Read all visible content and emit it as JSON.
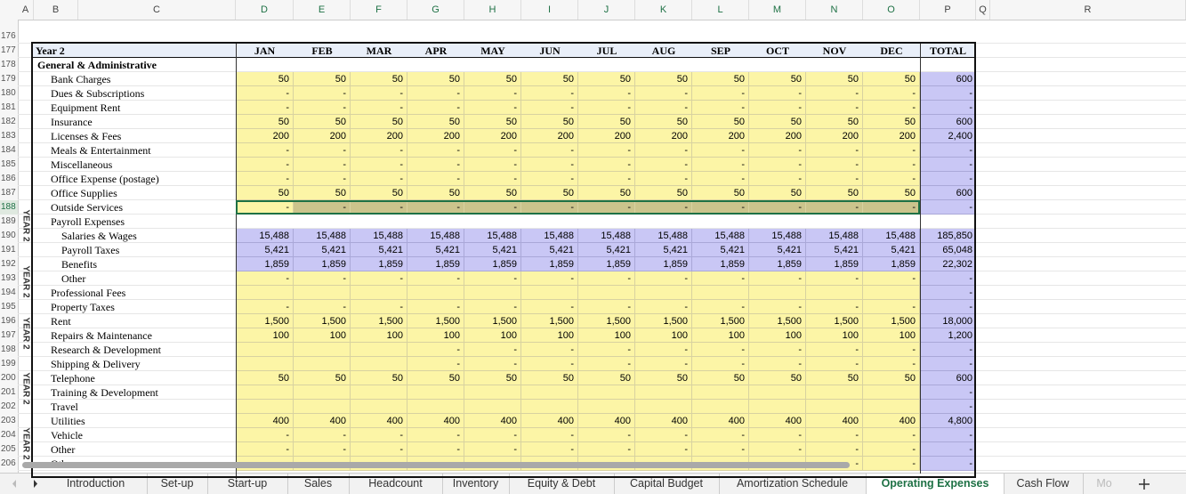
{
  "column_headers": [
    "A",
    "B",
    "C",
    "D",
    "E",
    "F",
    "G",
    "H",
    "I",
    "J",
    "K",
    "L",
    "M",
    "N",
    "O",
    "P",
    "Q",
    "R"
  ],
  "row_numbers": [
    "176",
    "177",
    "178",
    "179",
    "180",
    "181",
    "182",
    "183",
    "184",
    "185",
    "186",
    "187",
    "188",
    "189",
    "190",
    "191",
    "192",
    "193",
    "194",
    "195",
    "196",
    "197",
    "198",
    "199",
    "200",
    "201",
    "202",
    "203",
    "204",
    "205",
    "206"
  ],
  "table": {
    "header": {
      "label": "Year 2",
      "months": [
        "JAN",
        "FEB",
        "MAR",
        "APR",
        "MAY",
        "JUN",
        "JUL",
        "AUG",
        "SEP",
        "OCT",
        "NOV",
        "DEC"
      ],
      "total": "TOTAL"
    },
    "section": "General & Administrative",
    "fill": "#fcf5a6",
    "total_fill": "#c9c7f5",
    "selected_fill": "#cbc48c",
    "rows": [
      {
        "label": "Bank Charges",
        "values": [
          "50",
          "50",
          "50",
          "50",
          "50",
          "50",
          "50",
          "50",
          "50",
          "50",
          "50",
          "50"
        ],
        "total": "600"
      },
      {
        "label": "Dues & Subscriptions",
        "values": [
          "-",
          "-",
          "-",
          "-",
          "-",
          "-",
          "-",
          "-",
          "-",
          "-",
          "-",
          "-"
        ],
        "total": "-"
      },
      {
        "label": "Equipment Rent",
        "values": [
          "-",
          "-",
          "-",
          "-",
          "-",
          "-",
          "-",
          "-",
          "-",
          "-",
          "-",
          "-"
        ],
        "total": "-"
      },
      {
        "label": "Insurance",
        "values": [
          "50",
          "50",
          "50",
          "50",
          "50",
          "50",
          "50",
          "50",
          "50",
          "50",
          "50",
          "50"
        ],
        "total": "600"
      },
      {
        "label": "Licenses & Fees",
        "values": [
          "200",
          "200",
          "200",
          "200",
          "200",
          "200",
          "200",
          "200",
          "200",
          "200",
          "200",
          "200"
        ],
        "total": "2,400"
      },
      {
        "label": "Meals & Entertainment",
        "values": [
          "-",
          "-",
          "-",
          "-",
          "-",
          "-",
          "-",
          "-",
          "-",
          "-",
          "-",
          "-"
        ],
        "total": "-"
      },
      {
        "label": "Miscellaneous",
        "values": [
          "-",
          "-",
          "-",
          "-",
          "-",
          "-",
          "-",
          "-",
          "-",
          "-",
          "-",
          "-"
        ],
        "total": "-"
      },
      {
        "label": "Office Expense (postage)",
        "values": [
          "-",
          "-",
          "-",
          "-",
          "-",
          "-",
          "-",
          "-",
          "-",
          "-",
          "-",
          "-"
        ],
        "total": "-"
      },
      {
        "label": "Office Supplies",
        "values": [
          "50",
          "50",
          "50",
          "50",
          "50",
          "50",
          "50",
          "50",
          "50",
          "50",
          "50",
          "50"
        ],
        "total": "600"
      },
      {
        "label": "Outside Services",
        "values": [
          "-",
          "-",
          "-",
          "-",
          "-",
          "-",
          "-",
          "-",
          "-",
          "-",
          "-",
          "-"
        ],
        "total": "-",
        "selected": true
      },
      {
        "label": "Payroll Expenses",
        "plain": true,
        "rows": [
          {
            "label": "Salaries & Wages",
            "values": [
              "15,488",
              "15,488",
              "15,488",
              "15,488",
              "15,488",
              "15,488",
              "15,488",
              "15,488",
              "15,488",
              "15,488",
              "15,488",
              "15,488"
            ],
            "total": "185,850",
            "purple": true
          },
          {
            "label": "Payroll Taxes",
            "values": [
              "5,421",
              "5,421",
              "5,421",
              "5,421",
              "5,421",
              "5,421",
              "5,421",
              "5,421",
              "5,421",
              "5,421",
              "5,421",
              "5,421"
            ],
            "total": "65,048",
            "purple": true
          },
          {
            "label": "Benefits",
            "values": [
              "1,859",
              "1,859",
              "1,859",
              "1,859",
              "1,859",
              "1,859",
              "1,859",
              "1,859",
              "1,859",
              "1,859",
              "1,859",
              "1,859"
            ],
            "total": "22,302",
            "purple": true
          },
          {
            "label": "Other",
            "values": [
              "-",
              "-",
              "-",
              "-",
              "-",
              "-",
              "-",
              "-",
              "-",
              "-",
              "-",
              "-"
            ],
            "total": "-"
          }
        ]
      },
      {
        "label": "Professional Fees",
        "values": [
          null,
          null,
          null,
          null,
          null,
          null,
          null,
          null,
          null,
          null,
          null,
          null
        ],
        "total": "-"
      },
      {
        "label": "Property Taxes",
        "values": [
          "-",
          "-",
          "-",
          "-",
          "-",
          "-",
          "-",
          "-",
          "-",
          "-",
          "-",
          "-"
        ],
        "total": "-"
      },
      {
        "label": "Rent",
        "values": [
          "1,500",
          "1,500",
          "1,500",
          "1,500",
          "1,500",
          "1,500",
          "1,500",
          "1,500",
          "1,500",
          "1,500",
          "1,500",
          "1,500"
        ],
        "total": "18,000"
      },
      {
        "label": "Repairs & Maintenance",
        "values": [
          "100",
          "100",
          "100",
          "100",
          "100",
          "100",
          "100",
          "100",
          "100",
          "100",
          "100",
          "100"
        ],
        "total": "1,200"
      },
      {
        "label": "Research & Development",
        "values": [
          null,
          null,
          null,
          "-",
          "-",
          "-",
          "-",
          "-",
          "-",
          "-",
          "-",
          "-"
        ],
        "total": "-"
      },
      {
        "label": "Shipping & Delivery",
        "values": [
          null,
          null,
          null,
          "-",
          "-",
          "-",
          "-",
          "-",
          "-",
          "-",
          "-",
          "-"
        ],
        "total": "-"
      },
      {
        "label": "Telephone",
        "values": [
          "50",
          "50",
          "50",
          "50",
          "50",
          "50",
          "50",
          "50",
          "50",
          "50",
          "50",
          "50"
        ],
        "total": "600"
      },
      {
        "label": "Training & Development",
        "values": [
          null,
          null,
          null,
          null,
          null,
          null,
          null,
          null,
          null,
          null,
          null,
          null
        ],
        "total": "-"
      },
      {
        "label": "Travel",
        "values": [
          null,
          null,
          null,
          null,
          null,
          null,
          null,
          null,
          null,
          null,
          null,
          null
        ],
        "total": "-"
      },
      {
        "label": "Utilities",
        "values": [
          "400",
          "400",
          "400",
          "400",
          "400",
          "400",
          "400",
          "400",
          "400",
          "400",
          "400",
          "400"
        ],
        "total": "4,800"
      },
      {
        "label": "Vehicle",
        "values": [
          "-",
          "-",
          "-",
          "-",
          "-",
          "-",
          "-",
          "-",
          "-",
          "-",
          "-",
          "-"
        ],
        "total": "-"
      },
      {
        "label": "Other",
        "values": [
          "-",
          "-",
          "-",
          "-",
          "-",
          "-",
          "-",
          "-",
          "-",
          "-",
          "-",
          "-"
        ],
        "total": "-"
      },
      {
        "label": "Other",
        "values": [
          null,
          null,
          null,
          null,
          null,
          null,
          null,
          null,
          null,
          null,
          "-",
          "-"
        ],
        "total": "-"
      }
    ]
  },
  "side_labels": [
    "YEAR 2",
    "YEAR 2",
    "YEAR 2",
    "YEAR 2",
    "YEAR 2"
  ],
  "tabs": [
    {
      "label": "Introduction"
    },
    {
      "label": "Set-up"
    },
    {
      "label": "Start-up"
    },
    {
      "label": "Sales"
    },
    {
      "label": "Headcount"
    },
    {
      "label": "Inventory"
    },
    {
      "label": "Equity & Debt"
    },
    {
      "label": "Capital Budget"
    },
    {
      "label": "Amortization Schedule"
    },
    {
      "label": "Operating Expenses",
      "active": true
    },
    {
      "label": "Cash Flow"
    },
    {
      "label": "Mo"
    }
  ]
}
